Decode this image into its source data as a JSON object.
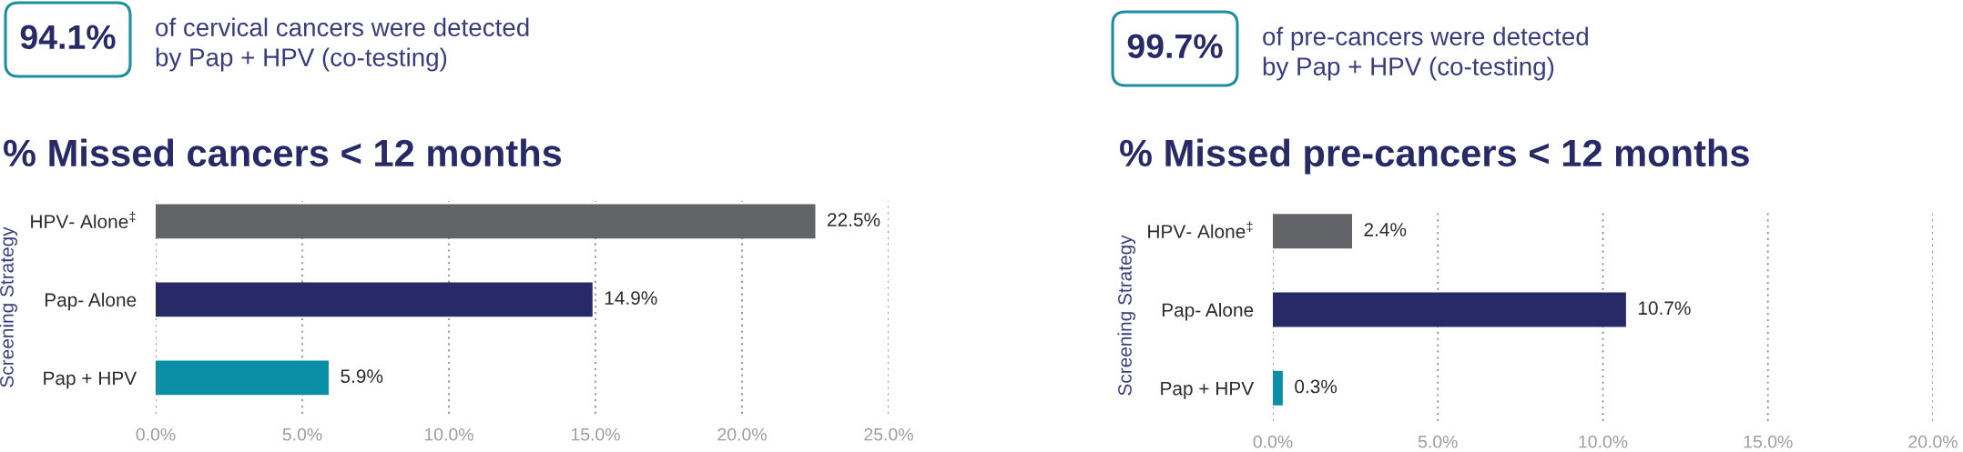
{
  "chart_data": [
    {
      "type": "other",
      "annotations": [
        "94.1%",
        "of cervical cancers were detected\nby Pap + HPV (co-testing)"
      ]
    },
    {
      "type": "bar",
      "orientation": "horizontal",
      "title": "% Missed cancers < 12 months",
      "ylabel": "Screening Strategy",
      "categories": [
        "HPV- Alone$^{‡}$",
        "Pap- Alone",
        "Pap + HPV"
      ],
      "values": [
        22.5,
        14.9,
        5.9
      ],
      "colors": [
        "#636468",
        "#272a66",
        "#0a8fa6"
      ],
      "value_labels": [
        "22.5%",
        "14.9%",
        "5.9%"
      ],
      "xlim": [
        0,
        25
      ],
      "xticks": [
        {
          "value": 0,
          "label": "0.0%"
        },
        {
          "value": 5,
          "label": "5.0%"
        },
        {
          "value": 10,
          "label": "10.0%"
        },
        {
          "value": 15,
          "label": "15.0%"
        },
        {
          "value": 20,
          "label": "20.0%"
        },
        {
          "value": 25,
          "label": "25.0%"
        }
      ],
      "grid": "x"
    },
    {
      "type": "other",
      "annotations": [
        "99.7%",
        "of pre-cancers were detected\nby Pap + HPV (co-testing)"
      ]
    },
    {
      "type": "bar",
      "orientation": "horizontal",
      "title": "% Missed pre-cancers < 12 months",
      "ylabel": "Screening Strategy",
      "categories": [
        "HPV- Alone$^{‡}$",
        "Pap- Alone",
        "Pap + HPV"
      ],
      "values": [
        2.4,
        10.7,
        0.3
      ],
      "colors": [
        "#636468",
        "#272a66",
        "#0a8fa6"
      ],
      "value_labels": [
        "2.4%",
        "10.7%",
        "0.3%"
      ],
      "xlim": [
        0,
        20
      ],
      "xticks": [
        {
          "value": 0,
          "label": "0.0%"
        },
        {
          "value": 5,
          "label": "5.0%"
        },
        {
          "value": 10,
          "label": "10.0%"
        },
        {
          "value": 15,
          "label": "15.0%"
        },
        {
          "value": 20,
          "label": "20.0%"
        }
      ],
      "grid": "x"
    }
  ]
}
